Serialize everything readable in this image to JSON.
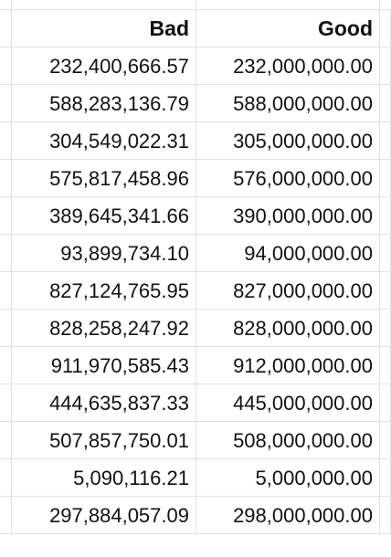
{
  "sheet": {
    "headers": [
      "Bad",
      "Good"
    ],
    "rows": [
      [
        "232,400,666.57",
        "232,000,000.00"
      ],
      [
        "588,283,136.79",
        "588,000,000.00"
      ],
      [
        "304,549,022.31",
        "305,000,000.00"
      ],
      [
        "575,817,458.96",
        "576,000,000.00"
      ],
      [
        "389,645,341.66",
        "390,000,000.00"
      ],
      [
        "93,899,734.10",
        "94,000,000.00"
      ],
      [
        "827,124,765.95",
        "827,000,000.00"
      ],
      [
        "828,258,247.92",
        "828,000,000.00"
      ],
      [
        "911,970,585.43",
        "912,000,000.00"
      ],
      [
        "444,635,837.33",
        "445,000,000.00"
      ],
      [
        "507,857,750.01",
        "508,000,000.00"
      ],
      [
        "5,090,116.21",
        "5,000,000.00"
      ],
      [
        "297,884,057.09",
        "298,000,000.00"
      ]
    ]
  }
}
